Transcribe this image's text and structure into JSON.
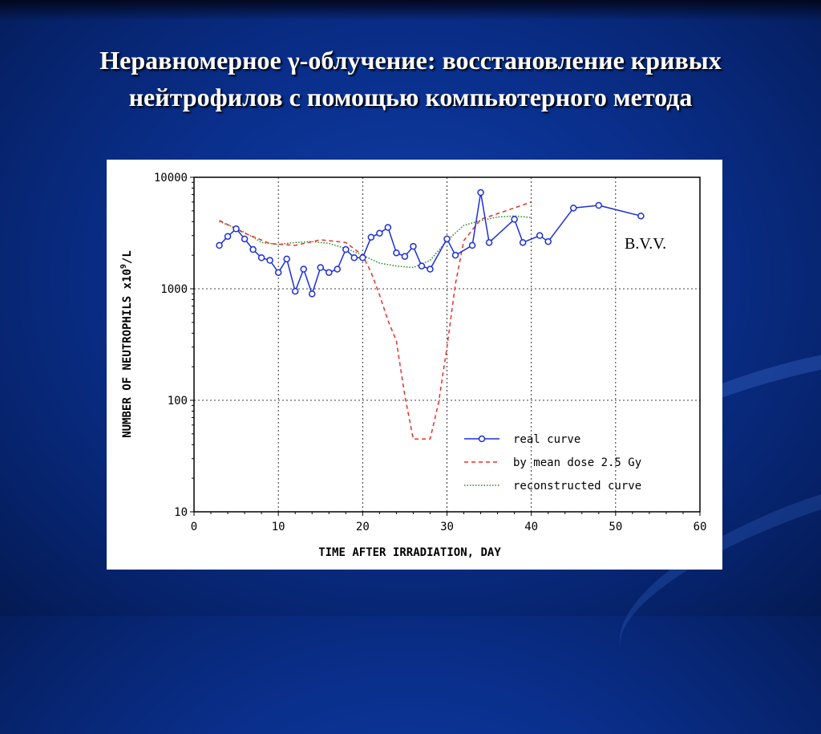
{
  "slide": {
    "title_line1": "Неравномерное γ-облучение: восстановление кривых",
    "title_line2": "нейтрофилов с помощью компьютерного метода"
  },
  "chart_data": {
    "type": "line",
    "xlabel": "TIME AFTER IRRADIATION, DAY",
    "ylabel_main": "NUMBER OF NEUTROPHILS x10",
    "ylabel_sup": "9",
    "ylabel_tail": "/L",
    "xlim": [
      0,
      60
    ],
    "ylim": [
      10,
      10000
    ],
    "yscale": "log",
    "x_ticks": [
      0,
      10,
      20,
      30,
      40,
      50,
      60
    ],
    "y_ticks": [
      10,
      100,
      1000,
      10000
    ],
    "grid": true,
    "annotation": "B.V.V.",
    "legend_position": "bottom-right",
    "series": [
      {
        "name": "real curve",
        "color": "#1c2fd6",
        "style": "solid-markers",
        "points": [
          [
            3,
            2450
          ],
          [
            4,
            2950
          ],
          [
            5,
            3450
          ],
          [
            6,
            2800
          ],
          [
            7,
            2250
          ],
          [
            8,
            1900
          ],
          [
            9,
            1800
          ],
          [
            10,
            1400
          ],
          [
            11,
            1850
          ],
          [
            12,
            950
          ],
          [
            13,
            1500
          ],
          [
            14,
            900
          ],
          [
            15,
            1550
          ],
          [
            16,
            1400
          ],
          [
            17,
            1500
          ],
          [
            18,
            2250
          ],
          [
            19,
            1900
          ],
          [
            20,
            1900
          ],
          [
            21,
            2900
          ],
          [
            22,
            3150
          ],
          [
            23,
            3550
          ],
          [
            24,
            2100
          ],
          [
            25,
            1950
          ],
          [
            26,
            2400
          ],
          [
            27,
            1600
          ],
          [
            28,
            1500
          ],
          [
            30,
            2800
          ],
          [
            31,
            2000
          ],
          [
            33,
            2450
          ],
          [
            34,
            7300
          ],
          [
            35,
            2600
          ],
          [
            38,
            4200
          ],
          [
            39,
            2600
          ],
          [
            41,
            3000
          ],
          [
            42,
            2650
          ],
          [
            45,
            5300
          ],
          [
            48,
            5600
          ],
          [
            53,
            4500
          ]
        ]
      },
      {
        "name": "by mean dose 2.5 Gy",
        "color": "#e8302a",
        "style": "dashed",
        "points": [
          [
            3,
            4100
          ],
          [
            6,
            3150
          ],
          [
            9,
            2550
          ],
          [
            12,
            2450
          ],
          [
            15,
            2750
          ],
          [
            18,
            2600
          ],
          [
            20,
            2000
          ],
          [
            21,
            1400
          ],
          [
            22,
            880
          ],
          [
            23,
            520
          ],
          [
            24,
            340
          ],
          [
            25,
            110
          ],
          [
            26,
            45
          ],
          [
            28,
            45
          ],
          [
            29,
            95
          ],
          [
            30,
            300
          ],
          [
            31,
            1100
          ],
          [
            32,
            2700
          ],
          [
            34,
            4200
          ],
          [
            37,
            5000
          ],
          [
            40,
            6000
          ]
        ]
      },
      {
        "name": "reconstructed curve",
        "color": "#1e8c1e",
        "style": "dotted",
        "points": [
          [
            3,
            4000
          ],
          [
            5,
            3500
          ],
          [
            7,
            2900
          ],
          [
            8,
            2600
          ],
          [
            10,
            2500
          ],
          [
            12,
            2600
          ],
          [
            14,
            2650
          ],
          [
            16,
            2550
          ],
          [
            18,
            2300
          ],
          [
            20,
            2000
          ],
          [
            22,
            1700
          ],
          [
            24,
            1600
          ],
          [
            26,
            1550
          ],
          [
            28,
            1800
          ],
          [
            30,
            2700
          ],
          [
            32,
            3700
          ],
          [
            34,
            4100
          ],
          [
            36,
            4400
          ],
          [
            38,
            4500
          ],
          [
            40,
            4350
          ]
        ]
      }
    ]
  }
}
